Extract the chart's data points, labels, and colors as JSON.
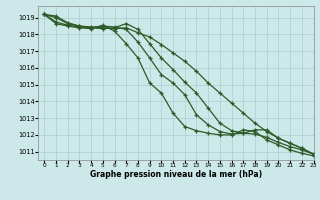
{
  "xlabel": "Graphe pression niveau de la mer (hPa)",
  "xlim": [
    -0.5,
    23
  ],
  "ylim": [
    1010.5,
    1019.7
  ],
  "yticks": [
    1011,
    1012,
    1013,
    1014,
    1015,
    1016,
    1017,
    1018,
    1019
  ],
  "xticks": [
    0,
    1,
    2,
    3,
    4,
    5,
    6,
    7,
    8,
    9,
    10,
    11,
    12,
    13,
    14,
    15,
    16,
    17,
    18,
    19,
    20,
    21,
    22,
    23
  ],
  "bg_color": "#cce8e8",
  "grid_color": "#aacfcf",
  "line_color": "#2d5a27",
  "lines": [
    [
      1019.2,
      1019.1,
      1018.7,
      1018.5,
      1018.45,
      1018.4,
      1018.35,
      1018.4,
      1018.1,
      1017.85,
      1017.4,
      1016.9,
      1016.4,
      1015.8,
      1015.1,
      1014.5,
      1013.9,
      1013.3,
      1012.7,
      1012.2,
      1011.8,
      1011.5,
      1011.2,
      1010.85
    ],
    [
      1019.2,
      1019.0,
      1018.65,
      1018.5,
      1018.4,
      1018.35,
      1018.4,
      1018.65,
      1018.3,
      1017.45,
      1016.6,
      1015.9,
      1015.15,
      1014.5,
      1013.6,
      1012.7,
      1012.25,
      1012.1,
      1012.05,
      1011.85,
      1011.55,
      1011.3,
      1011.1,
      1010.85
    ],
    [
      1019.2,
      1018.75,
      1018.55,
      1018.45,
      1018.4,
      1018.5,
      1018.45,
      1018.3,
      1017.55,
      1016.6,
      1015.6,
      1015.1,
      1014.4,
      1013.2,
      1012.6,
      1012.2,
      1012.05,
      1012.1,
      1012.3,
      1012.3,
      1011.8,
      1011.5,
      1011.2,
      1010.85
    ],
    [
      1019.2,
      1018.65,
      1018.5,
      1018.4,
      1018.35,
      1018.55,
      1018.2,
      1017.45,
      1016.6,
      1015.1,
      1014.5,
      1013.3,
      1012.5,
      1012.25,
      1012.1,
      1012.0,
      1012.0,
      1012.3,
      1012.2,
      1011.7,
      1011.4,
      1011.1,
      1010.9,
      1010.75
    ]
  ],
  "marker": "+",
  "markersize": 3.5,
  "linewidth": 0.9
}
